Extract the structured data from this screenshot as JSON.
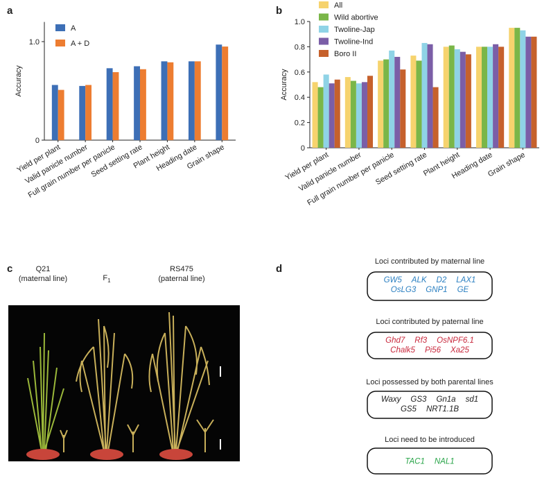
{
  "panel_labels": [
    "a",
    "b",
    "c",
    "d"
  ],
  "chart_data": [
    {
      "type": "bar",
      "ylabel": "Accuracy",
      "categories": [
        "Yield per plant",
        "Valid panicle number",
        "Full grain number per panicle",
        "Seed setting rate",
        "Plant height",
        "Heading date",
        "Grain shape"
      ],
      "series": [
        {
          "name": "A",
          "color": "#3d6fb6",
          "values": [
            0.56,
            0.55,
            0.73,
            0.75,
            0.8,
            0.8,
            0.97
          ]
        },
        {
          "name": "A + D",
          "color": "#ed7d31",
          "values": [
            0.51,
            0.56,
            0.69,
            0.72,
            0.79,
            0.8,
            0.95
          ]
        }
      ],
      "ylim": [
        0,
        1.2
      ],
      "yticks": [
        0,
        {
          "value": 1,
          "label": "1.0"
        }
      ],
      "legend": "upper left"
    },
    {
      "type": "bar",
      "ylabel": "Accuracy",
      "categories": [
        "Yield per plant",
        "Valid panicle number",
        "Full grain number per panicle",
        "Seed setting rate",
        "Plant height",
        "Heading date",
        "Grain shape"
      ],
      "series": [
        {
          "name": "All",
          "color": "#f6d36e",
          "values": [
            0.52,
            0.56,
            0.69,
            0.73,
            0.8,
            0.8,
            0.95
          ]
        },
        {
          "name": "Wild abortive",
          "color": "#7ab648",
          "values": [
            0.48,
            0.53,
            0.7,
            0.69,
            0.81,
            0.8,
            0.95
          ]
        },
        {
          "name": "Twoline-Jap",
          "color": "#8fd3e6",
          "values": [
            0.58,
            0.51,
            0.77,
            0.83,
            0.78,
            0.8,
            0.93
          ]
        },
        {
          "name": "Twoline-Ind",
          "color": "#7b5ea7",
          "values": [
            0.51,
            0.52,
            0.72,
            0.82,
            0.76,
            0.82,
            0.88
          ]
        },
        {
          "name": "Boro II",
          "color": "#c6612c",
          "values": [
            0.54,
            0.57,
            0.62,
            0.48,
            0.74,
            0.8,
            0.88
          ]
        }
      ],
      "ylim": [
        0,
        1
      ],
      "yticks": [
        0,
        0.2,
        0.4,
        0.6,
        0.8,
        {
          "value": 1,
          "label": "1.0"
        }
      ],
      "legend": "upper left"
    }
  ],
  "photo": {
    "plants": [
      {
        "name": "Q21",
        "note": "(maternal line)"
      },
      {
        "name": "F",
        "subscript": "1"
      },
      {
        "name": "RS475",
        "note": "(paternal line)"
      }
    ]
  },
  "loci": [
    {
      "title": "Loci contributed by maternal line",
      "color": "#2a7fc1",
      "genes": [
        [
          "GW5",
          "ALK",
          "D2",
          "LAX1"
        ],
        [
          "OsLG3",
          "GNP1",
          "GE"
        ]
      ]
    },
    {
      "title": "Loci contributed by paternal line",
      "color": "#c8283c",
      "genes": [
        [
          "Ghd7",
          "Rf3",
          "OsNPF6.1"
        ],
        [
          "Chalk5",
          "Pi56",
          "Xa25"
        ]
      ]
    },
    {
      "title": "Loci possessed by both parental lines",
      "color": "#222222",
      "genes": [
        [
          "Waxy",
          "GS3",
          "Gn1a",
          "sd1"
        ],
        [
          "GS5",
          "NRT1.1B"
        ]
      ]
    },
    {
      "title": "Loci need to be introduced",
      "color": "#2aa54a",
      "genes": [
        [
          "TAC1",
          "NAL1"
        ]
      ]
    }
  ]
}
